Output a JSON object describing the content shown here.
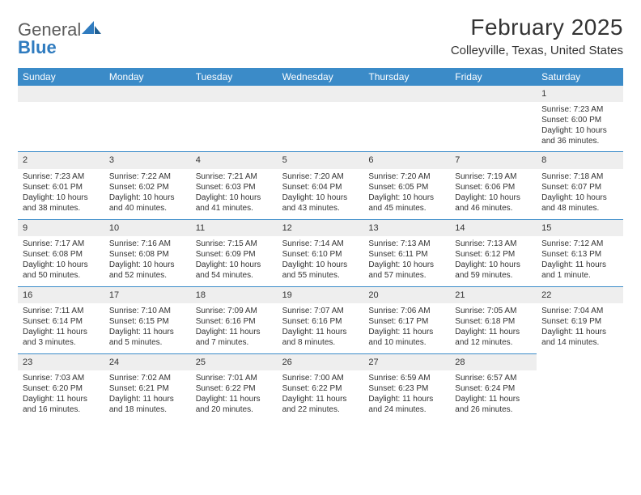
{
  "logo": {
    "word1": "General",
    "word2": "Blue"
  },
  "title": "February 2025",
  "location": "Colleyville, Texas, United States",
  "colors": {
    "header_blue": "#3b8bc8",
    "row_label_bg": "#eeeeee",
    "text": "#333333",
    "logo_gray": "#5c5c5c",
    "logo_blue": "#2f7bbf",
    "background": "#ffffff"
  },
  "weekdays": [
    "Sunday",
    "Monday",
    "Tuesday",
    "Wednesday",
    "Thursday",
    "Friday",
    "Saturday"
  ],
  "weeks": [
    [
      null,
      null,
      null,
      null,
      null,
      null,
      {
        "n": "1",
        "sunrise": "Sunrise: 7:23 AM",
        "sunset": "Sunset: 6:00 PM",
        "daylight": "Daylight: 10 hours and 36 minutes."
      }
    ],
    [
      {
        "n": "2",
        "sunrise": "Sunrise: 7:23 AM",
        "sunset": "Sunset: 6:01 PM",
        "daylight": "Daylight: 10 hours and 38 minutes."
      },
      {
        "n": "3",
        "sunrise": "Sunrise: 7:22 AM",
        "sunset": "Sunset: 6:02 PM",
        "daylight": "Daylight: 10 hours and 40 minutes."
      },
      {
        "n": "4",
        "sunrise": "Sunrise: 7:21 AM",
        "sunset": "Sunset: 6:03 PM",
        "daylight": "Daylight: 10 hours and 41 minutes."
      },
      {
        "n": "5",
        "sunrise": "Sunrise: 7:20 AM",
        "sunset": "Sunset: 6:04 PM",
        "daylight": "Daylight: 10 hours and 43 minutes."
      },
      {
        "n": "6",
        "sunrise": "Sunrise: 7:20 AM",
        "sunset": "Sunset: 6:05 PM",
        "daylight": "Daylight: 10 hours and 45 minutes."
      },
      {
        "n": "7",
        "sunrise": "Sunrise: 7:19 AM",
        "sunset": "Sunset: 6:06 PM",
        "daylight": "Daylight: 10 hours and 46 minutes."
      },
      {
        "n": "8",
        "sunrise": "Sunrise: 7:18 AM",
        "sunset": "Sunset: 6:07 PM",
        "daylight": "Daylight: 10 hours and 48 minutes."
      }
    ],
    [
      {
        "n": "9",
        "sunrise": "Sunrise: 7:17 AM",
        "sunset": "Sunset: 6:08 PM",
        "daylight": "Daylight: 10 hours and 50 minutes."
      },
      {
        "n": "10",
        "sunrise": "Sunrise: 7:16 AM",
        "sunset": "Sunset: 6:08 PM",
        "daylight": "Daylight: 10 hours and 52 minutes."
      },
      {
        "n": "11",
        "sunrise": "Sunrise: 7:15 AM",
        "sunset": "Sunset: 6:09 PM",
        "daylight": "Daylight: 10 hours and 54 minutes."
      },
      {
        "n": "12",
        "sunrise": "Sunrise: 7:14 AM",
        "sunset": "Sunset: 6:10 PM",
        "daylight": "Daylight: 10 hours and 55 minutes."
      },
      {
        "n": "13",
        "sunrise": "Sunrise: 7:13 AM",
        "sunset": "Sunset: 6:11 PM",
        "daylight": "Daylight: 10 hours and 57 minutes."
      },
      {
        "n": "14",
        "sunrise": "Sunrise: 7:13 AM",
        "sunset": "Sunset: 6:12 PM",
        "daylight": "Daylight: 10 hours and 59 minutes."
      },
      {
        "n": "15",
        "sunrise": "Sunrise: 7:12 AM",
        "sunset": "Sunset: 6:13 PM",
        "daylight": "Daylight: 11 hours and 1 minute."
      }
    ],
    [
      {
        "n": "16",
        "sunrise": "Sunrise: 7:11 AM",
        "sunset": "Sunset: 6:14 PM",
        "daylight": "Daylight: 11 hours and 3 minutes."
      },
      {
        "n": "17",
        "sunrise": "Sunrise: 7:10 AM",
        "sunset": "Sunset: 6:15 PM",
        "daylight": "Daylight: 11 hours and 5 minutes."
      },
      {
        "n": "18",
        "sunrise": "Sunrise: 7:09 AM",
        "sunset": "Sunset: 6:16 PM",
        "daylight": "Daylight: 11 hours and 7 minutes."
      },
      {
        "n": "19",
        "sunrise": "Sunrise: 7:07 AM",
        "sunset": "Sunset: 6:16 PM",
        "daylight": "Daylight: 11 hours and 8 minutes."
      },
      {
        "n": "20",
        "sunrise": "Sunrise: 7:06 AM",
        "sunset": "Sunset: 6:17 PM",
        "daylight": "Daylight: 11 hours and 10 minutes."
      },
      {
        "n": "21",
        "sunrise": "Sunrise: 7:05 AM",
        "sunset": "Sunset: 6:18 PM",
        "daylight": "Daylight: 11 hours and 12 minutes."
      },
      {
        "n": "22",
        "sunrise": "Sunrise: 7:04 AM",
        "sunset": "Sunset: 6:19 PM",
        "daylight": "Daylight: 11 hours and 14 minutes."
      }
    ],
    [
      {
        "n": "23",
        "sunrise": "Sunrise: 7:03 AM",
        "sunset": "Sunset: 6:20 PM",
        "daylight": "Daylight: 11 hours and 16 minutes."
      },
      {
        "n": "24",
        "sunrise": "Sunrise: 7:02 AM",
        "sunset": "Sunset: 6:21 PM",
        "daylight": "Daylight: 11 hours and 18 minutes."
      },
      {
        "n": "25",
        "sunrise": "Sunrise: 7:01 AM",
        "sunset": "Sunset: 6:22 PM",
        "daylight": "Daylight: 11 hours and 20 minutes."
      },
      {
        "n": "26",
        "sunrise": "Sunrise: 7:00 AM",
        "sunset": "Sunset: 6:22 PM",
        "daylight": "Daylight: 11 hours and 22 minutes."
      },
      {
        "n": "27",
        "sunrise": "Sunrise: 6:59 AM",
        "sunset": "Sunset: 6:23 PM",
        "daylight": "Daylight: 11 hours and 24 minutes."
      },
      {
        "n": "28",
        "sunrise": "Sunrise: 6:57 AM",
        "sunset": "Sunset: 6:24 PM",
        "daylight": "Daylight: 11 hours and 26 minutes."
      },
      null
    ]
  ]
}
